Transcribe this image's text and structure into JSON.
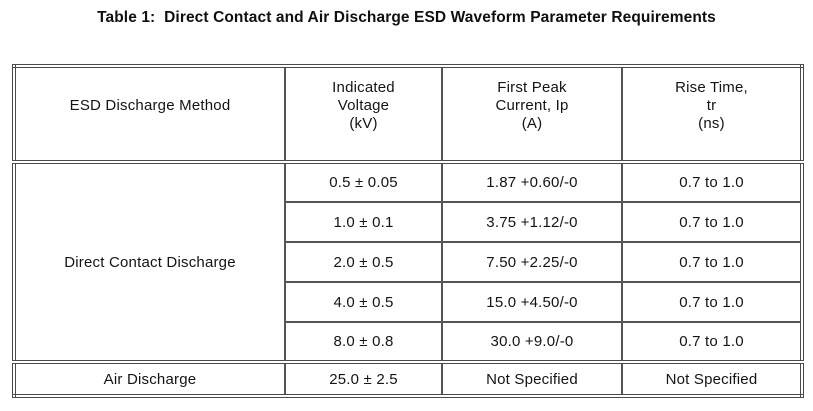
{
  "title": "Table 1:  Direct Contact and Air Discharge ESD Waveform Parameter Requirements",
  "table": {
    "columns": [
      {
        "label": "ESD Discharge Method"
      },
      {
        "label": "Indicated\nVoltage\n(kV)"
      },
      {
        "label": "First Peak\nCurrent, Ip\n(A)"
      },
      {
        "label": "Rise Time,\ntr\n(ns)"
      }
    ],
    "sections": [
      {
        "method": "Direct Contact Discharge",
        "rows": [
          {
            "indicated_voltage_kv": "0.5 ± 0.05",
            "first_peak_current_a": "1.87 +0.60/-0",
            "rise_time_ns": "0.7 to 1.0"
          },
          {
            "indicated_voltage_kv": "1.0 ± 0.1",
            "first_peak_current_a": "3.75 +1.12/-0",
            "rise_time_ns": "0.7 to 1.0"
          },
          {
            "indicated_voltage_kv": "2.0 ± 0.5",
            "first_peak_current_a": "7.50 +2.25/-0",
            "rise_time_ns": "0.7 to 1.0"
          },
          {
            "indicated_voltage_kv": "4.0 ± 0.5",
            "first_peak_current_a": "15.0 +4.50/-0",
            "rise_time_ns": "0.7 to 1.0"
          },
          {
            "indicated_voltage_kv": "8.0 ± 0.8",
            "first_peak_current_a": "30.0 +9.0/-0",
            "rise_time_ns": "0.7 to 1.0"
          }
        ]
      },
      {
        "method": "Air Discharge",
        "rows": [
          {
            "indicated_voltage_kv": "25.0 ± 2.5",
            "first_peak_current_a": "Not Specified",
            "rise_time_ns": "Not Specified"
          }
        ]
      }
    ]
  },
  "colors": {
    "background": "#ffffff",
    "text": "#141414",
    "border": "#4b4b4b"
  }
}
